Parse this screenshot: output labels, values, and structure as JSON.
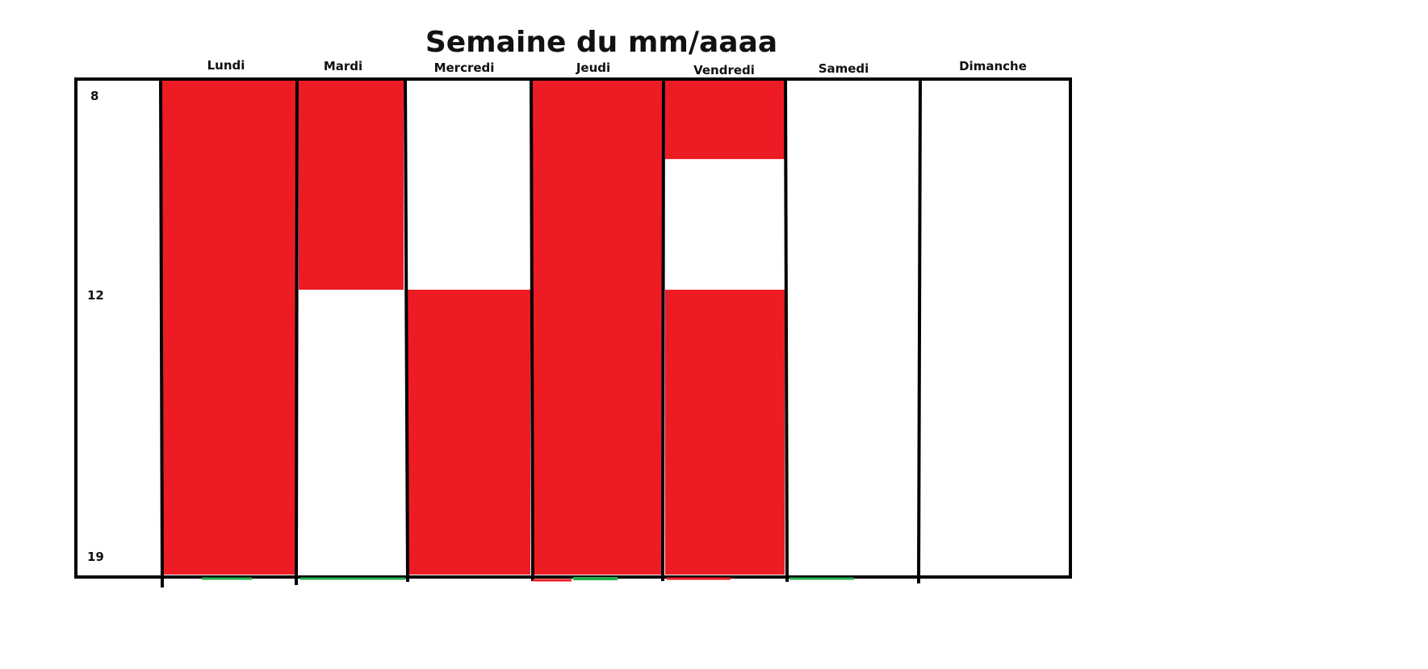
{
  "title": "Semaine du mm/aaaa",
  "days": [
    "Lundi",
    "Mardi",
    "Mercredi",
    "Jeudi",
    "Vendredi",
    "Samedi",
    "Dimanche"
  ],
  "hours": [
    "8",
    "12",
    "19"
  ],
  "colors": {
    "busy": "#ed1c24",
    "accent": "#22b14c",
    "line": "#000000"
  },
  "busy_blocks": [
    {
      "day": "Lundi",
      "from": 8,
      "to": 19
    },
    {
      "day": "Mardi",
      "from": 8,
      "to": 12
    },
    {
      "day": "Mercredi",
      "from": 12,
      "to": 19
    },
    {
      "day": "Jeudi",
      "from": 8,
      "to": 19
    },
    {
      "day": "Vendredi",
      "from": 8,
      "to": 9.5
    },
    {
      "day": "Vendredi",
      "from": 12,
      "to": 19
    }
  ]
}
